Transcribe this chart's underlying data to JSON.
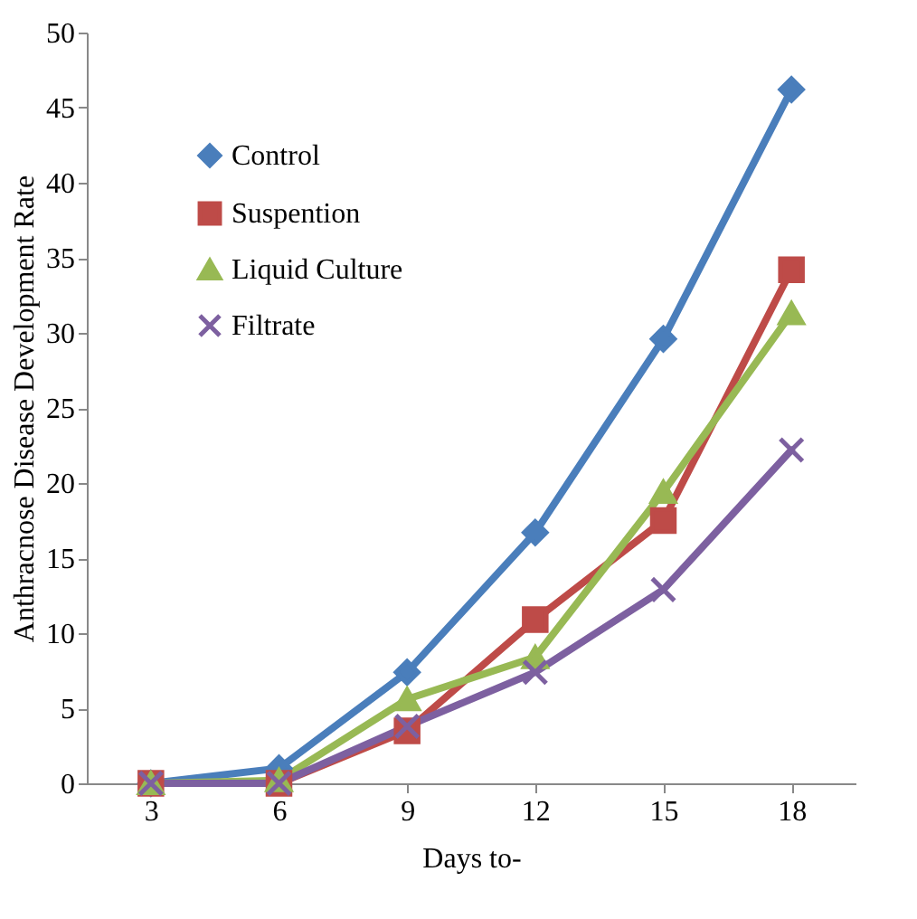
{
  "chart_data": {
    "type": "line",
    "xlabel": "Days to-",
    "ylabel": "Anthracnose Disease Development Rate",
    "categories": [
      "3",
      "6",
      "9",
      "12",
      "15",
      "18"
    ],
    "series": [
      {
        "name": "Control",
        "color": "#4a7ebb",
        "marker": "diamond",
        "values": [
          0,
          1.0,
          7.4,
          16.7,
          29.6,
          46.2
        ]
      },
      {
        "name": "Suspention",
        "color": "#be4b48",
        "marker": "square",
        "values": [
          0,
          0,
          3.5,
          10.9,
          17.5,
          34.2
        ]
      },
      {
        "name": "Liquid Culture",
        "color": "#98b954",
        "marker": "triangle",
        "values": [
          0,
          0.2,
          5.6,
          8.4,
          19.4,
          31.3
        ]
      },
      {
        "name": "Filtrate",
        "color": "#7d60a0",
        "marker": "cross",
        "values": [
          0,
          0,
          3.8,
          7.4,
          12.9,
          22.2
        ]
      }
    ],
    "ylim": [
      0,
      50
    ],
    "yticks": [
      0,
      5,
      10,
      15,
      20,
      25,
      30,
      35,
      40,
      45,
      50
    ],
    "grid": false,
    "legend": "top left",
    "line_style": "solid"
  }
}
